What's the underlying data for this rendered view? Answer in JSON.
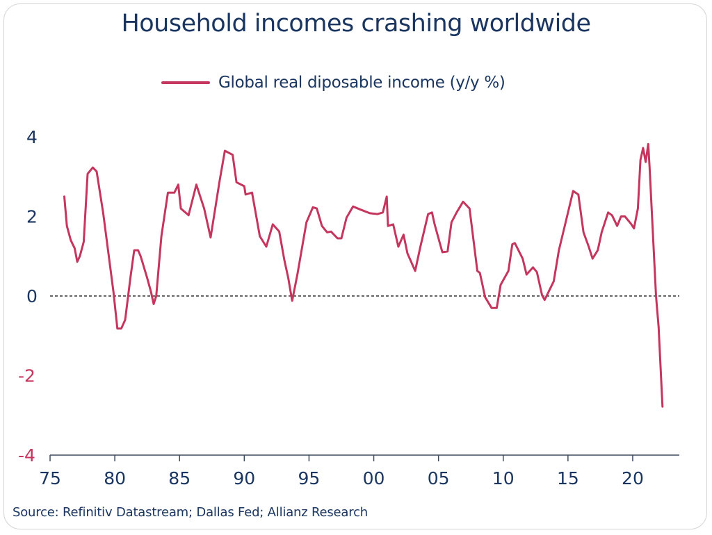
{
  "title": "Household incomes crashing worldwide",
  "source": "Source: Refinitiv Datastream; Dallas Fed; Allianz Research",
  "colors": {
    "series": "#c4365e",
    "text": "#1a3660",
    "negative_tick": "#c4365e",
    "zero_line": "#333333"
  },
  "chart_data": {
    "type": "line",
    "title": "Household incomes crashing worldwide",
    "xlabel": "",
    "ylabel": "",
    "xlim": [
      1975,
      2023.6
    ],
    "ylim": [
      -4,
      4
    ],
    "grid": false,
    "legend_position": "top-center",
    "reference_line": {
      "y": 0,
      "style": "dashed"
    },
    "x_ticks": [
      {
        "value": 1975,
        "label": "75"
      },
      {
        "value": 1980,
        "label": "80"
      },
      {
        "value": 1985,
        "label": "85"
      },
      {
        "value": 1990,
        "label": "90"
      },
      {
        "value": 1995,
        "label": "95"
      },
      {
        "value": 2000,
        "label": "00"
      },
      {
        "value": 2005,
        "label": "05"
      },
      {
        "value": 2010,
        "label": "10"
      },
      {
        "value": 2015,
        "label": "15"
      },
      {
        "value": 2020,
        "label": "20"
      }
    ],
    "y_ticks": [
      {
        "value": 4,
        "label": "4"
      },
      {
        "value": 2,
        "label": "2"
      },
      {
        "value": 0,
        "label": "0"
      },
      {
        "value": -2,
        "label": "-2"
      },
      {
        "value": -4,
        "label": "-4"
      }
    ],
    "series": [
      {
        "name": "Global real diposable income (y/y %)",
        "x": [
          1976.1,
          1976.3,
          1976.6,
          1976.9,
          1977.1,
          1977.3,
          1977.6,
          1977.9,
          1978.3,
          1978.6,
          1979.1,
          1979.9,
          1980.2,
          1980.5,
          1980.8,
          1981.2,
          1981.5,
          1981.8,
          1982.0,
          1982.5,
          1982.8,
          1983.0,
          1983.2,
          1983.6,
          1984.1,
          1984.6,
          1984.9,
          1985.1,
          1985.7,
          1986.3,
          1986.9,
          1987.4,
          1988.1,
          1988.5,
          1989.1,
          1989.4,
          1990.0,
          1990.1,
          1990.6,
          1991.2,
          1991.7,
          1992.2,
          1992.7,
          1993.1,
          1993.4,
          1993.7,
          1994.1,
          1994.8,
          1995.3,
          1995.6,
          1996.0,
          1996.4,
          1996.7,
          1997.2,
          1997.5,
          1997.9,
          1998.4,
          1999.0,
          1999.7,
          2000.3,
          2000.7,
          2001.0,
          2001.1,
          2001.5,
          2001.9,
          2002.3,
          2002.6,
          2003.2,
          2003.6,
          2004.2,
          2004.5,
          2004.7,
          2005.3,
          2005.7,
          2006.0,
          2006.4,
          2006.9,
          2007.4,
          2008.0,
          2008.2,
          2008.6,
          2009.1,
          2009.5,
          2009.8,
          2010.4,
          2010.7,
          2010.9,
          2011.5,
          2011.8,
          2012.3,
          2012.6,
          2013.0,
          2013.2,
          2013.9,
          2014.3,
          2015.0,
          2015.4,
          2015.8,
          2016.2,
          2016.6,
          2016.9,
          2017.3,
          2017.6,
          2018.1,
          2018.4,
          2018.8,
          2019.1,
          2019.4,
          2019.9,
          2020.1,
          2020.4,
          2020.6,
          2020.8,
          2021.0,
          2021.2,
          2021.3,
          2021.8,
          2022.0,
          2022.3
        ],
        "values": [
          2.5,
          1.76,
          1.4,
          1.2,
          0.86,
          1.0,
          1.36,
          3.07,
          3.23,
          3.13,
          2.1,
          0.1,
          -0.82,
          -0.82,
          -0.6,
          0.45,
          1.15,
          1.15,
          1.0,
          0.45,
          0.1,
          -0.2,
          0.0,
          1.5,
          2.6,
          2.6,
          2.8,
          2.2,
          2.03,
          2.8,
          2.2,
          1.47,
          2.9,
          3.65,
          3.55,
          2.86,
          2.76,
          2.55,
          2.6,
          1.5,
          1.24,
          1.8,
          1.62,
          0.9,
          0.45,
          -0.12,
          0.54,
          1.85,
          2.23,
          2.2,
          1.76,
          1.6,
          1.62,
          1.45,
          1.45,
          1.97,
          2.25,
          2.17,
          2.08,
          2.06,
          2.1,
          2.5,
          1.76,
          1.8,
          1.24,
          1.54,
          1.07,
          0.63,
          1.24,
          2.06,
          2.1,
          1.8,
          1.1,
          1.12,
          1.85,
          2.1,
          2.37,
          2.2,
          0.63,
          0.58,
          -0.03,
          -0.3,
          -0.3,
          0.28,
          0.63,
          1.3,
          1.33,
          0.94,
          0.54,
          0.72,
          0.6,
          0.02,
          -0.1,
          0.37,
          1.15,
          2.1,
          2.64,
          2.55,
          1.6,
          1.24,
          0.94,
          1.15,
          1.6,
          2.1,
          2.03,
          1.76,
          2.0,
          2.0,
          1.8,
          1.7,
          2.2,
          3.42,
          3.72,
          3.37,
          3.82,
          3.25,
          0.0,
          -0.77,
          -2.78
        ]
      }
    ]
  }
}
